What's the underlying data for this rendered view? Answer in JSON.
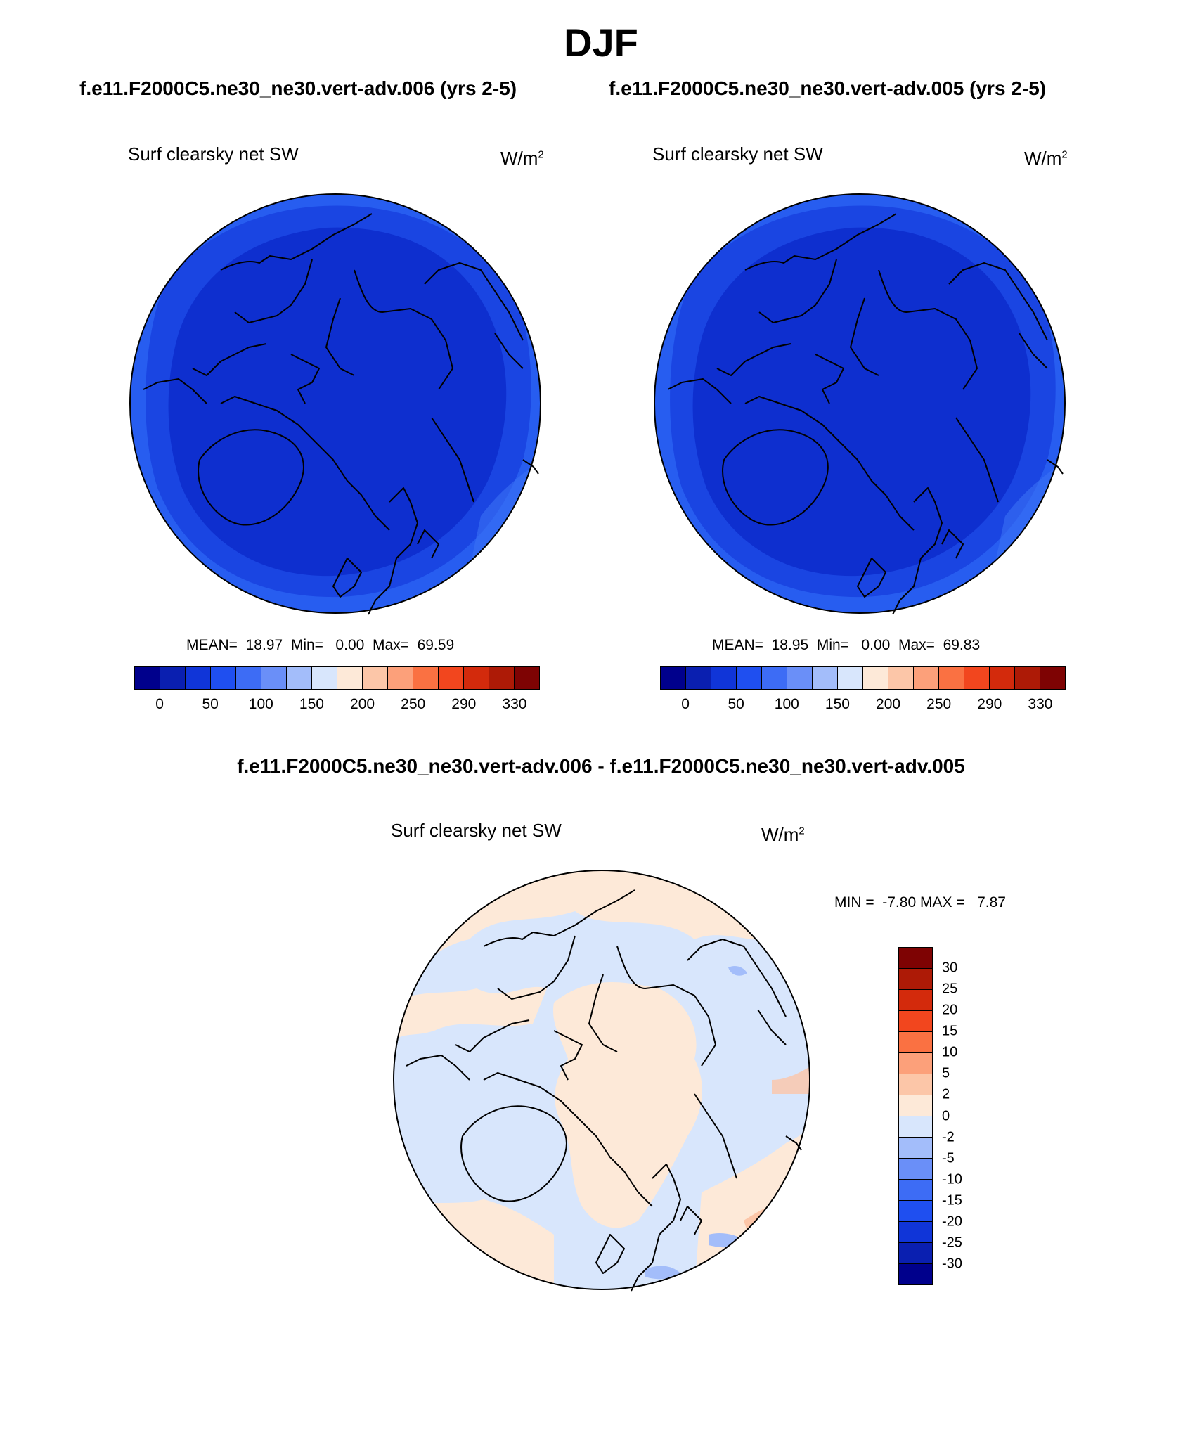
{
  "figure": {
    "title": "DJF",
    "case_a_title": "f.e11.F2000C5.ne30_ne30.vert-adv.006 (yrs 2-5)",
    "case_b_title": "f.e11.F2000C5.ne30_ne30.vert-adv.005 (yrs 2-5)",
    "diff_title": "f.e11.F2000C5.ne30_ne30.vert-adv.006 - f.e11.F2000C5.ne30_ne30.vert-adv.005"
  },
  "panels": [
    {
      "variable": "Surf clearsky net SW",
      "units_base": "W/m",
      "units_exp": "2",
      "stats": "MEAN=  18.97  Min=   0.00  Max=  69.59"
    },
    {
      "variable": "Surf clearsky net SW",
      "units_base": "W/m",
      "units_exp": "2",
      "stats": "MEAN=  18.95  Min=   0.00  Max=  69.83"
    },
    {
      "variable": "Surf clearsky net SW",
      "units_base": "W/m",
      "units_exp": "2",
      "stats": "MIN =  -7.80 MAX =   7.87"
    }
  ],
  "colorbar_main": {
    "colors": [
      "#00008c",
      "#0a1fb0",
      "#1035d8",
      "#1f4ff0",
      "#3d6cf5",
      "#6a8ff8",
      "#a3bdfa",
      "#d8e6fc",
      "#fde9d8",
      "#fcc6a8",
      "#fca07a",
      "#fa7142",
      "#f2461e",
      "#d32a0c",
      "#ad1a06",
      "#7e0303"
    ],
    "ticks": [
      "0",
      "50",
      "100",
      "150",
      "200",
      "250",
      "290",
      "330"
    ]
  },
  "colorbar_diff": {
    "colors_top_to_bottom": [
      "#7e0303",
      "#ad1a06",
      "#d32a0c",
      "#f2461e",
      "#fa7142",
      "#fca07a",
      "#fcc6a8",
      "#fde9d8",
      "#d8e6fc",
      "#a3bdfa",
      "#6a8ff8",
      "#3d6cf5",
      "#1f4ff0",
      "#1035d8",
      "#0a1fb0",
      "#00008c"
    ],
    "ticks_top_to_bottom": [
      "30",
      "25",
      "20",
      "15",
      "10",
      "5",
      "2",
      "0",
      "-2",
      "-5",
      "-10",
      "-15",
      "-20",
      "-25",
      "-30"
    ]
  },
  "map_colors": {
    "deep_core": "#0e2fcf",
    "mid_ring": "#1a45e2",
    "outer_ring": "#275df0",
    "edge_bright": "#3a72f5",
    "diff_positive": "#fde9d8",
    "diff_negative": "#d8e6fc",
    "diff_strong_pos": "#fcc6a8",
    "diff_strong_neg": "#a3bdfa"
  }
}
